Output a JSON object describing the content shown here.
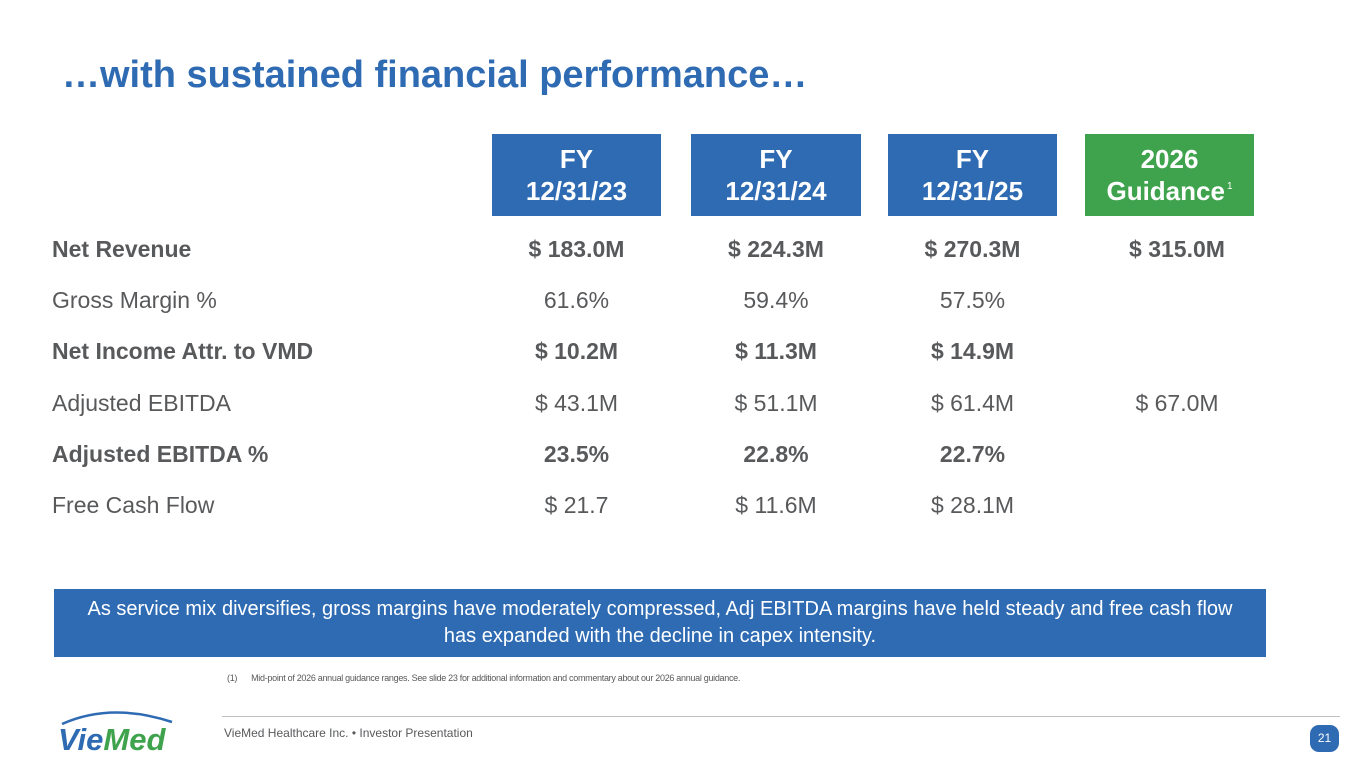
{
  "title": "…with sustained financial performance…",
  "table": {
    "columns": [
      {
        "line1": "FY",
        "line2": "12/31/23",
        "color": "#2e6bb3"
      },
      {
        "line1": "FY",
        "line2": "12/31/24",
        "color": "#2e6bb3"
      },
      {
        "line1": "FY",
        "line2": "12/31/25",
        "color": "#2e6bb3"
      },
      {
        "line1": "2026",
        "line2": "Guidance",
        "footnote_ref": "1",
        "color": "#3fa34d"
      }
    ],
    "rows": [
      {
        "label": "Net Revenue",
        "bold": true,
        "values": [
          "$ 183.0M",
          "$ 224.3M",
          "$ 270.3M",
          "$ 315.0M"
        ]
      },
      {
        "label": "Gross Margin %",
        "bold": false,
        "values": [
          "61.6%",
          "59.4%",
          "57.5%",
          ""
        ]
      },
      {
        "label": "Net Income Attr. to VMD",
        "bold": true,
        "values": [
          "$ 10.2M",
          "$ 11.3M",
          "$ 14.9M",
          ""
        ]
      },
      {
        "label": "Adjusted EBITDA",
        "bold": false,
        "values": [
          "$ 43.1M",
          "$ 51.1M",
          "$ 61.4M",
          "$ 67.0M"
        ]
      },
      {
        "label": "Adjusted EBITDA %",
        "bold": true,
        "values": [
          "23.5%",
          "22.8%",
          "22.7%",
          ""
        ]
      },
      {
        "label": "Free Cash Flow",
        "bold": false,
        "values": [
          "$ 21.7",
          "$ 11.6M",
          "$ 28.1M",
          ""
        ]
      }
    ]
  },
  "callout": "As service mix diversifies, gross margins have moderately compressed, Adj EBITDA margins have held steady and free cash flow has expanded with the decline in capex intensity.",
  "footnote": {
    "number": "(1)",
    "text": "Mid-point of 2026 annual guidance ranges. See slide 23 for additional information and commentary about our 2026 annual guidance."
  },
  "footer": {
    "company": "VieMed Healthcare Inc.",
    "separator": "•",
    "document": "Investor Presentation",
    "page_number": "21"
  },
  "logo": {
    "part1": "Vie",
    "part2": "Med",
    "color1": "#2e6bb3",
    "color2": "#3fa34d"
  }
}
